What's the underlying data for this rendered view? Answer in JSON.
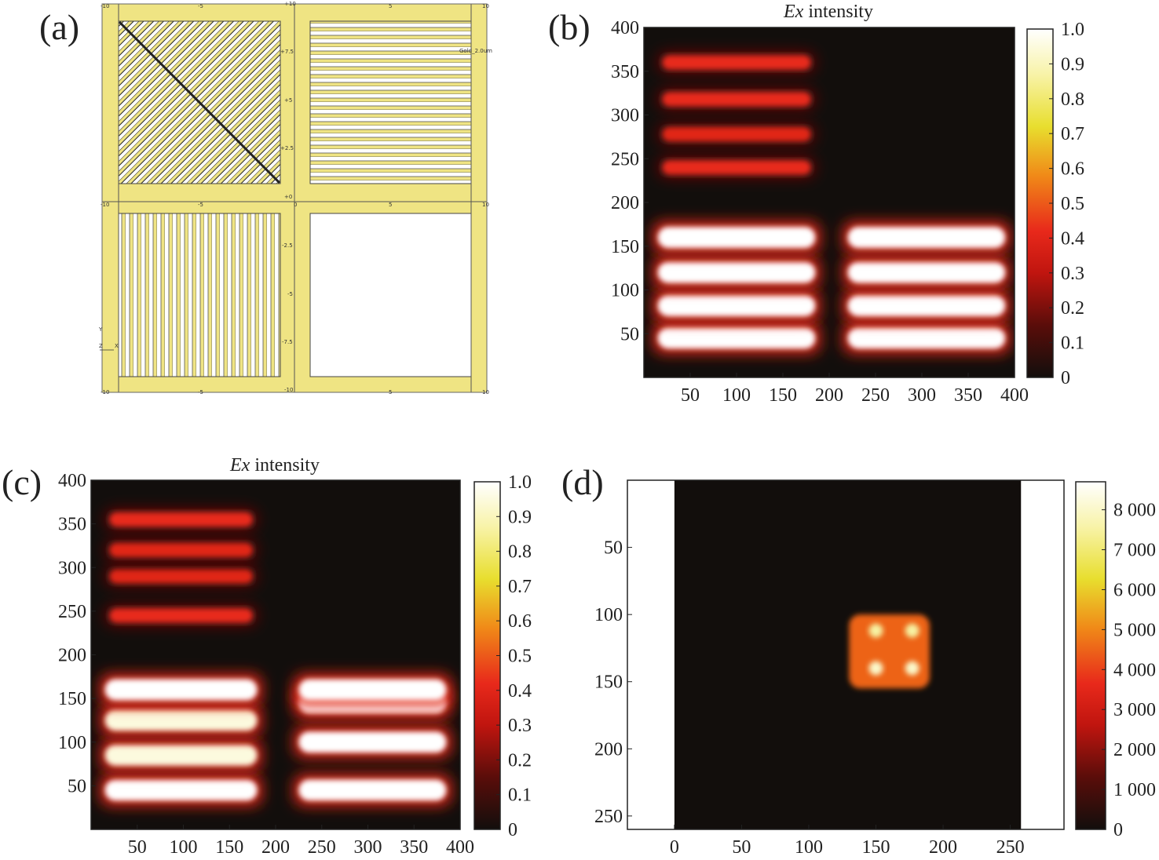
{
  "panels": {
    "a": {
      "label": "(a)",
      "layer_label": "Gold_2.0um",
      "top_ticks": [
        "-10",
        "-5",
        "+10",
        "5",
        "10"
      ],
      "mid_ticks": [
        "-10",
        "-5",
        "0",
        "5",
        "10"
      ],
      "bottom_ticks": [
        "-10",
        "-5",
        "-10",
        "5",
        "10"
      ],
      "y_ticks_upper": [
        "+7.5",
        "+5",
        "+2.5",
        "+0"
      ],
      "y_ticks_lower": [
        "-2.5",
        "-5",
        "-7.5"
      ],
      "axis_indicator": {
        "y": "Y",
        "z": "Z",
        "x": "X"
      },
      "gold_color": "#efe483"
    },
    "b": {
      "label": "(b)"
    },
    "c": {
      "label": "(c)"
    },
    "d": {
      "label": "(d)"
    }
  },
  "colormap": [
    "#120e0c",
    "#5a0d0a",
    "#c0150f",
    "#e8291b",
    "#f08a18",
    "#e8de2e",
    "#f8f3a8",
    "#ffffff"
  ],
  "chart_data": [
    {
      "panel": "b",
      "type": "heatmap",
      "title": "Ex intensity",
      "xlim": [
        0,
        400
      ],
      "ylim": [
        0,
        400
      ],
      "xticks": [
        "50",
        "100",
        "150",
        "200",
        "250",
        "300",
        "350",
        "400"
      ],
      "yticks": [
        "50",
        "100",
        "150",
        "200",
        "250",
        "300",
        "350",
        "400"
      ],
      "colorbar": {
        "range": [
          0,
          1.0
        ],
        "ticks": [
          "0",
          "0.1",
          "0.2",
          "0.3",
          "0.4",
          "0.5",
          "0.6",
          "0.7",
          "0.8",
          "0.9",
          "1.0"
        ]
      },
      "bands": [
        {
          "x": [
            15,
            185
          ],
          "y": 45,
          "value": 1.0
        },
        {
          "x": [
            15,
            185
          ],
          "y": 82,
          "value": 1.0
        },
        {
          "x": [
            15,
            185
          ],
          "y": 120,
          "value": 1.0
        },
        {
          "x": [
            15,
            185
          ],
          "y": 160,
          "value": 1.0
        },
        {
          "x": [
            220,
            390
          ],
          "y": 45,
          "value": 1.0
        },
        {
          "x": [
            220,
            390
          ],
          "y": 82,
          "value": 1.0
        },
        {
          "x": [
            220,
            390
          ],
          "y": 120,
          "value": 1.0
        },
        {
          "x": [
            220,
            390
          ],
          "y": 160,
          "value": 1.0
        },
        {
          "x": [
            20,
            180
          ],
          "y": 240,
          "value": 0.42
        },
        {
          "x": [
            20,
            180
          ],
          "y": 278,
          "value": 0.4
        },
        {
          "x": [
            20,
            180
          ],
          "y": 318,
          "value": 0.42
        },
        {
          "x": [
            20,
            180
          ],
          "y": 360,
          "value": 0.42
        }
      ]
    },
    {
      "panel": "c",
      "type": "heatmap",
      "title": "Ex intensity",
      "xlim": [
        0,
        400
      ],
      "ylim": [
        0,
        400
      ],
      "xticks": [
        "50",
        "100",
        "150",
        "200",
        "250",
        "300",
        "350",
        "400"
      ],
      "yticks": [
        "50",
        "100",
        "150",
        "200",
        "250",
        "300",
        "350",
        "400"
      ],
      "colorbar": {
        "range": [
          0,
          1.0
        ],
        "ticks": [
          "0",
          "0.1",
          "0.2",
          "0.3",
          "0.4",
          "0.5",
          "0.6",
          "0.7",
          "0.8",
          "0.9",
          "1.0"
        ]
      },
      "bands": [
        {
          "x": [
            15,
            180
          ],
          "y": 45,
          "value": 1.0
        },
        {
          "x": [
            15,
            180
          ],
          "y": 85,
          "value": 0.95
        },
        {
          "x": [
            15,
            180
          ],
          "y": 125,
          "value": 0.95
        },
        {
          "x": [
            15,
            180
          ],
          "y": 160,
          "value": 1.0
        },
        {
          "x": [
            225,
            385
          ],
          "y": 45,
          "value": 1.0
        },
        {
          "x": [
            225,
            385
          ],
          "y": 100,
          "value": 1.0
        },
        {
          "x": [
            225,
            385
          ],
          "y": 145,
          "value": 1.0
        },
        {
          "x": [
            225,
            385
          ],
          "y": 160,
          "value": 1.0
        },
        {
          "x": [
            20,
            175
          ],
          "y": 245,
          "value": 0.42
        },
        {
          "x": [
            20,
            175
          ],
          "y": 290,
          "value": 0.4
        },
        {
          "x": [
            20,
            175
          ],
          "y": 320,
          "value": 0.4
        },
        {
          "x": [
            20,
            175
          ],
          "y": 355,
          "value": 0.42
        }
      ]
    },
    {
      "panel": "d",
      "type": "heatmap",
      "xlim": [
        -35,
        290
      ],
      "ylim": [
        0,
        260
      ],
      "y_inverted": true,
      "xticks": [
        "0",
        "50",
        "100",
        "150",
        "200",
        "250"
      ],
      "yticks": [
        "50",
        "100",
        "150",
        "200",
        "250"
      ],
      "colorbar": {
        "range": [
          0,
          8700
        ],
        "ticks": [
          "0",
          "1 000",
          "2 000",
          "3 000",
          "4 000",
          "5 000",
          "6 000",
          "7 000",
          "8 000"
        ]
      },
      "blank_columns": [
        [
          -35,
          0
        ],
        [
          258,
          290
        ]
      ],
      "spots": [
        {
          "x": 150,
          "y": 112,
          "value": 7500
        },
        {
          "x": 177,
          "y": 112,
          "value": 7500
        },
        {
          "x": 150,
          "y": 140,
          "value": 8000
        },
        {
          "x": 177,
          "y": 140,
          "value": 8000
        }
      ],
      "halo": {
        "x": [
          130,
          190
        ],
        "y": [
          100,
          155
        ],
        "value": 4500
      }
    }
  ]
}
